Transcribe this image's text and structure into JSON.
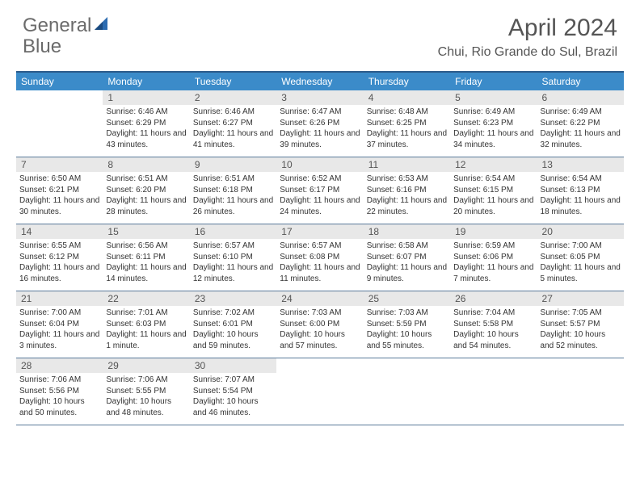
{
  "brand": {
    "part1": "General",
    "part2": "Blue",
    "text_color": "#6b6b6b",
    "accent_color": "#2b6bb0"
  },
  "title": "April 2024",
  "location": "Chui, Rio Grande do Sul, Brazil",
  "colors": {
    "header_border": "#2b5b8a",
    "weekday_bg": "#3b8bc9",
    "weekday_text": "#ffffff",
    "daynum_bg": "#e8e8e8",
    "row_border": "#5a7a9a",
    "body_text": "#333333"
  },
  "weekdays": [
    "Sunday",
    "Monday",
    "Tuesday",
    "Wednesday",
    "Thursday",
    "Friday",
    "Saturday"
  ],
  "weeks": [
    [
      null,
      {
        "n": "1",
        "sunrise": "6:46 AM",
        "sunset": "6:29 PM",
        "daylight": "11 hours and 43 minutes."
      },
      {
        "n": "2",
        "sunrise": "6:46 AM",
        "sunset": "6:27 PM",
        "daylight": "11 hours and 41 minutes."
      },
      {
        "n": "3",
        "sunrise": "6:47 AM",
        "sunset": "6:26 PM",
        "daylight": "11 hours and 39 minutes."
      },
      {
        "n": "4",
        "sunrise": "6:48 AM",
        "sunset": "6:25 PM",
        "daylight": "11 hours and 37 minutes."
      },
      {
        "n": "5",
        "sunrise": "6:49 AM",
        "sunset": "6:23 PM",
        "daylight": "11 hours and 34 minutes."
      },
      {
        "n": "6",
        "sunrise": "6:49 AM",
        "sunset": "6:22 PM",
        "daylight": "11 hours and 32 minutes."
      }
    ],
    [
      {
        "n": "7",
        "sunrise": "6:50 AM",
        "sunset": "6:21 PM",
        "daylight": "11 hours and 30 minutes."
      },
      {
        "n": "8",
        "sunrise": "6:51 AM",
        "sunset": "6:20 PM",
        "daylight": "11 hours and 28 minutes."
      },
      {
        "n": "9",
        "sunrise": "6:51 AM",
        "sunset": "6:18 PM",
        "daylight": "11 hours and 26 minutes."
      },
      {
        "n": "10",
        "sunrise": "6:52 AM",
        "sunset": "6:17 PM",
        "daylight": "11 hours and 24 minutes."
      },
      {
        "n": "11",
        "sunrise": "6:53 AM",
        "sunset": "6:16 PM",
        "daylight": "11 hours and 22 minutes."
      },
      {
        "n": "12",
        "sunrise": "6:54 AM",
        "sunset": "6:15 PM",
        "daylight": "11 hours and 20 minutes."
      },
      {
        "n": "13",
        "sunrise": "6:54 AM",
        "sunset": "6:13 PM",
        "daylight": "11 hours and 18 minutes."
      }
    ],
    [
      {
        "n": "14",
        "sunrise": "6:55 AM",
        "sunset": "6:12 PM",
        "daylight": "11 hours and 16 minutes."
      },
      {
        "n": "15",
        "sunrise": "6:56 AM",
        "sunset": "6:11 PM",
        "daylight": "11 hours and 14 minutes."
      },
      {
        "n": "16",
        "sunrise": "6:57 AM",
        "sunset": "6:10 PM",
        "daylight": "11 hours and 12 minutes."
      },
      {
        "n": "17",
        "sunrise": "6:57 AM",
        "sunset": "6:08 PM",
        "daylight": "11 hours and 11 minutes."
      },
      {
        "n": "18",
        "sunrise": "6:58 AM",
        "sunset": "6:07 PM",
        "daylight": "11 hours and 9 minutes."
      },
      {
        "n": "19",
        "sunrise": "6:59 AM",
        "sunset": "6:06 PM",
        "daylight": "11 hours and 7 minutes."
      },
      {
        "n": "20",
        "sunrise": "7:00 AM",
        "sunset": "6:05 PM",
        "daylight": "11 hours and 5 minutes."
      }
    ],
    [
      {
        "n": "21",
        "sunrise": "7:00 AM",
        "sunset": "6:04 PM",
        "daylight": "11 hours and 3 minutes."
      },
      {
        "n": "22",
        "sunrise": "7:01 AM",
        "sunset": "6:03 PM",
        "daylight": "11 hours and 1 minute."
      },
      {
        "n": "23",
        "sunrise": "7:02 AM",
        "sunset": "6:01 PM",
        "daylight": "10 hours and 59 minutes."
      },
      {
        "n": "24",
        "sunrise": "7:03 AM",
        "sunset": "6:00 PM",
        "daylight": "10 hours and 57 minutes."
      },
      {
        "n": "25",
        "sunrise": "7:03 AM",
        "sunset": "5:59 PM",
        "daylight": "10 hours and 55 minutes."
      },
      {
        "n": "26",
        "sunrise": "7:04 AM",
        "sunset": "5:58 PM",
        "daylight": "10 hours and 54 minutes."
      },
      {
        "n": "27",
        "sunrise": "7:05 AM",
        "sunset": "5:57 PM",
        "daylight": "10 hours and 52 minutes."
      }
    ],
    [
      {
        "n": "28",
        "sunrise": "7:06 AM",
        "sunset": "5:56 PM",
        "daylight": "10 hours and 50 minutes."
      },
      {
        "n": "29",
        "sunrise": "7:06 AM",
        "sunset": "5:55 PM",
        "daylight": "10 hours and 48 minutes."
      },
      {
        "n": "30",
        "sunrise": "7:07 AM",
        "sunset": "5:54 PM",
        "daylight": "10 hours and 46 minutes."
      },
      null,
      null,
      null,
      null
    ]
  ],
  "labels": {
    "sunrise": "Sunrise:",
    "sunset": "Sunset:",
    "daylight": "Daylight:"
  }
}
